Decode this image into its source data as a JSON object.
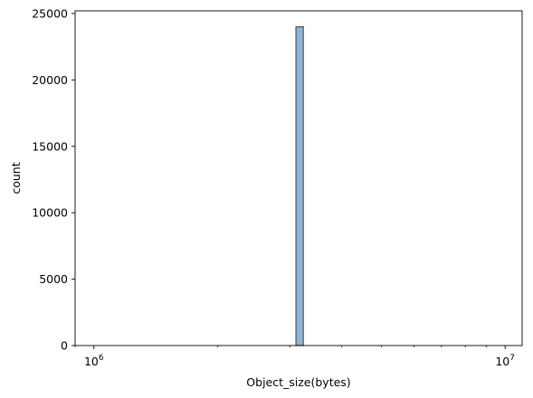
{
  "chart_data": {
    "type": "bar",
    "title": "",
    "xlabel": "Object_size(bytes)",
    "ylabel": "count",
    "x_scale": "log",
    "xlim": [
      900000,
      11000000
    ],
    "ylim": [
      0,
      25200
    ],
    "grid": false,
    "bar_color": "#8db6d6",
    "bar_edge_color": "#4a5560",
    "x_major_ticks": [
      {
        "value": 1000000,
        "base": "10",
        "exp": "6"
      },
      {
        "value": 10000000,
        "base": "10",
        "exp": "7"
      }
    ],
    "y_ticks": [
      {
        "value": 0,
        "label": "0"
      },
      {
        "value": 5000,
        "label": "5000"
      },
      {
        "value": 10000,
        "label": "10000"
      },
      {
        "value": 15000,
        "label": "15000"
      },
      {
        "value": 20000,
        "label": "20000"
      },
      {
        "value": 25000,
        "label": "25000"
      }
    ],
    "bins": [
      {
        "x0": 1000000,
        "x1": 3100000,
        "count": 0
      },
      {
        "x0": 3100000,
        "x1": 3230000,
        "count": 24000
      },
      {
        "x0": 3230000,
        "x1": 10000000,
        "count": 0
      }
    ]
  }
}
